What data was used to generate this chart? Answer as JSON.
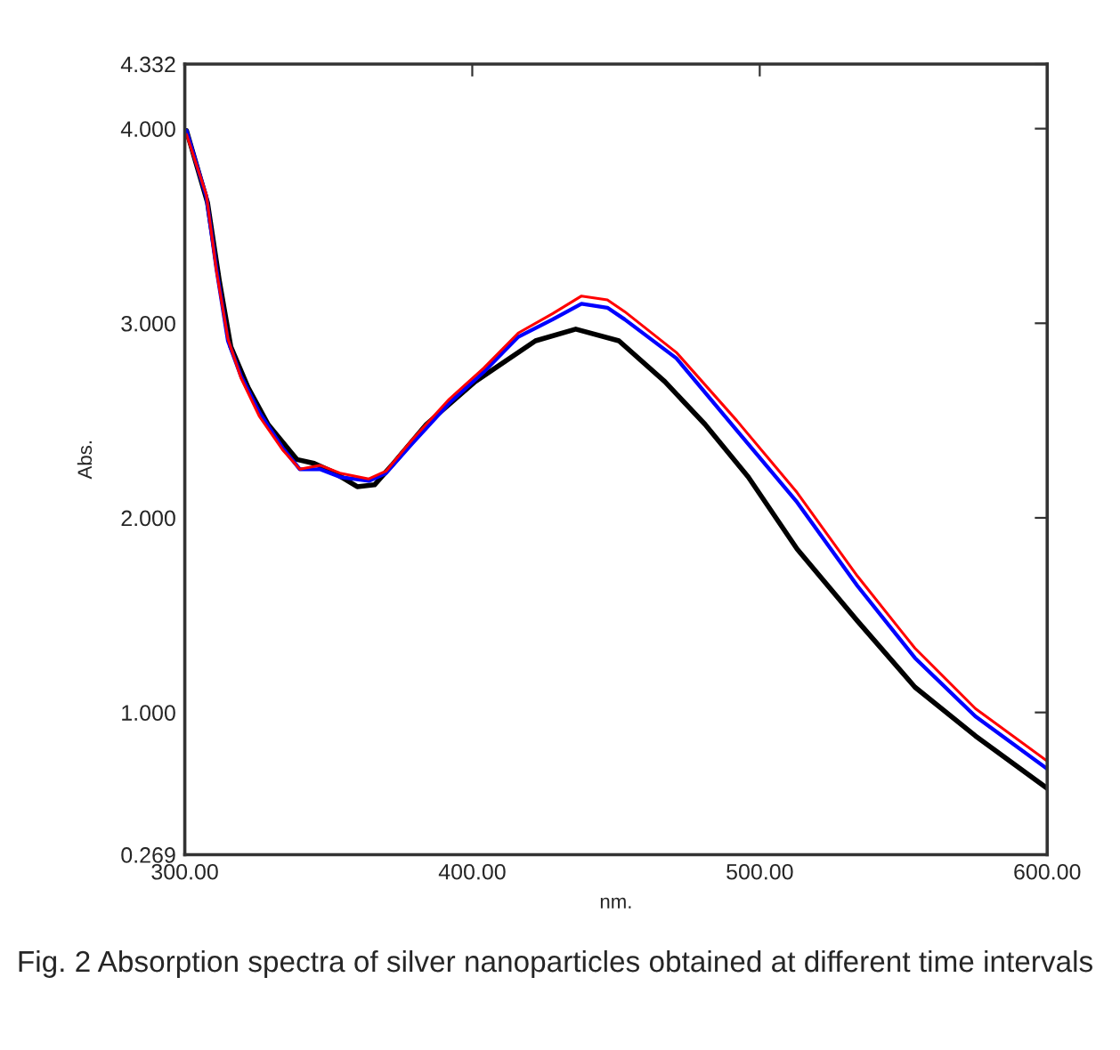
{
  "chart_data": {
    "type": "line",
    "xlabel": "nm.",
    "ylabel": "Abs.",
    "xlim": [
      300,
      600
    ],
    "xticks": [
      {
        "value": 300,
        "label": "300.00"
      },
      {
        "value": 400,
        "label": "400.00"
      },
      {
        "value": 500,
        "label": "500.00"
      },
      {
        "value": 600,
        "label": "600.00"
      }
    ],
    "ylim": [
      0.269,
      4.332
    ],
    "yticks": [
      {
        "value": 0.269,
        "label": "0.269"
      },
      {
        "value": 1,
        "label": "1.000"
      },
      {
        "value": 2,
        "label": "2.000"
      },
      {
        "value": 3,
        "label": "3.000"
      },
      {
        "value": 4,
        "label": "4.000"
      },
      {
        "value": 4.332,
        "label": "4.332"
      }
    ],
    "grid": false,
    "legend": false,
    "series": [
      {
        "color": "#000000",
        "x": [
          300.6,
          307.9,
          312,
          316,
          322,
          329,
          339,
          345,
          351,
          360,
          366,
          372,
          384,
          401,
          422,
          436,
          451,
          467,
          481,
          496,
          513,
          534,
          554,
          575,
          600
        ],
        "values": [
          3.99,
          3.62,
          3.22,
          2.88,
          2.67,
          2.48,
          2.3,
          2.28,
          2.24,
          2.16,
          2.17,
          2.27,
          2.48,
          2.7,
          2.91,
          2.97,
          2.91,
          2.7,
          2.48,
          2.21,
          1.84,
          1.47,
          1.13,
          0.88,
          0.61
        ]
      },
      {
        "color": "#0000ff",
        "x": [
          300.6,
          307.5,
          311,
          315,
          319.5,
          326,
          334,
          340,
          347,
          354,
          364,
          370,
          379,
          392,
          404,
          416,
          428,
          438,
          447,
          453,
          471,
          492,
          513,
          534,
          554,
          575,
          600
        ],
        "values": [
          3.99,
          3.65,
          3.28,
          2.91,
          2.73,
          2.54,
          2.36,
          2.25,
          2.25,
          2.21,
          2.19,
          2.23,
          2.38,
          2.59,
          2.75,
          2.93,
          3.02,
          3.1,
          3.08,
          3.02,
          2.82,
          2.45,
          2.08,
          1.65,
          1.28,
          0.98,
          0.71
        ]
      },
      {
        "color": "#ff0000",
        "x": [
          300.6,
          307.5,
          311,
          315,
          319.5,
          326,
          334,
          340,
          347,
          354,
          364,
          370,
          379,
          392,
          404,
          416,
          428,
          438,
          447,
          453,
          471,
          492,
          513,
          534,
          554,
          575,
          600
        ],
        "values": [
          3.97,
          3.66,
          3.27,
          2.92,
          2.72,
          2.52,
          2.35,
          2.25,
          2.27,
          2.23,
          2.2,
          2.24,
          2.4,
          2.61,
          2.77,
          2.95,
          3.05,
          3.14,
          3.12,
          3.06,
          2.85,
          2.5,
          2.13,
          1.7,
          1.33,
          1.02,
          0.75
        ]
      }
    ],
    "annotations": [
      "Fig. 2 Absorption spectra of silver nanoparticles obtained at different time intervals"
    ]
  }
}
